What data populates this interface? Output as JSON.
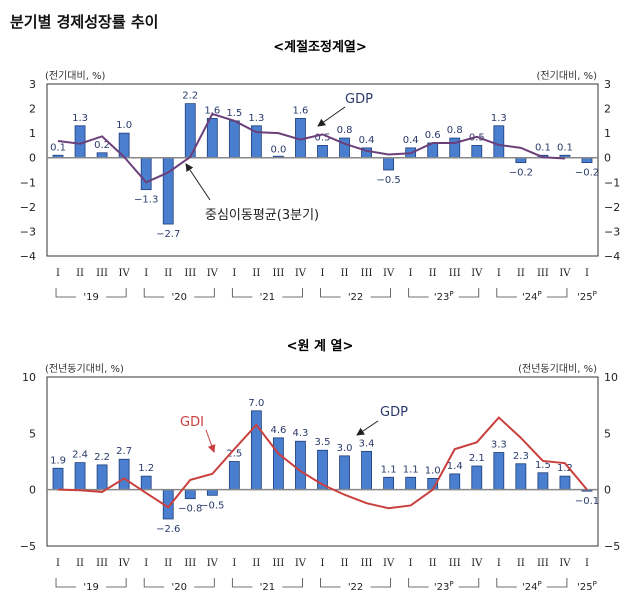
{
  "title": "분기별 경제성장률 추이",
  "chart_data": [
    {
      "type": "bar",
      "subtitle": "<계절조정계열>",
      "ylabel_left": "(전기대비, %)",
      "ylabel_right": "(전기대비, %)",
      "ylim": [
        -4,
        3
      ],
      "yticks": [
        3,
        2,
        1,
        0,
        -1,
        -2,
        -3,
        -4
      ],
      "categories": [
        "I",
        "II",
        "III",
        "IV",
        "I",
        "II",
        "III",
        "IV",
        "I",
        "II",
        "III",
        "IV",
        "I",
        "II",
        "III",
        "IV",
        "I",
        "II",
        "III",
        "IV",
        "I",
        "II",
        "III",
        "IV",
        "I"
      ],
      "years": [
        {
          "label": "'19",
          "sup": ""
        },
        {
          "label": "'20",
          "sup": ""
        },
        {
          "label": "'21",
          "sup": ""
        },
        {
          "label": "'22",
          "sup": ""
        },
        {
          "label": "'23",
          "sup": "P"
        },
        {
          "label": "'24",
          "sup": "P"
        },
        {
          "label": "'25",
          "sup": "P"
        }
      ],
      "series": [
        {
          "name": "GDP",
          "kind": "bar",
          "color": "#4a7fd0",
          "values": [
            0.1,
            1.3,
            0.2,
            1.0,
            -1.3,
            -2.7,
            2.2,
            1.6,
            1.5,
            1.3,
            0.0,
            1.6,
            0.5,
            0.8,
            0.4,
            -0.5,
            0.4,
            0.6,
            0.8,
            0.5,
            1.3,
            -0.2,
            0.1,
            0.1,
            -0.2
          ],
          "labels": [
            "0.1",
            "1.3",
            "0.2",
            "1.0",
            "−1.3",
            "−2.7",
            "2.2",
            "1.6",
            "1.5",
            "1.3",
            "0.0",
            "1.6",
            "0.5",
            "0.8",
            "0.4",
            "−0.5",
            "0.4",
            "0.6",
            "0.8",
            "0.5",
            "1.3",
            "−0.2",
            "0.1",
            "0.1",
            "−0.2"
          ]
        },
        {
          "name": "중심이동평균(3분기)",
          "kind": "line",
          "color": "#6b3f7a",
          "values": [
            0.68,
            0.57,
            0.87,
            0.03,
            -1.0,
            -0.6,
            0.03,
            1.78,
            1.5,
            1.04,
            1.0,
            0.74,
            0.95,
            0.57,
            0.28,
            0.13,
            0.18,
            0.6,
            0.6,
            0.85,
            0.52,
            0.4,
            0.02,
            -0.03,
            null
          ]
        }
      ],
      "annotations": [
        "GDP",
        "중심이동평균(3분기)"
      ]
    },
    {
      "type": "bar",
      "subtitle": "<원 계 열>",
      "ylabel_left": "(전년동기대비, %)",
      "ylabel_right": "(전년동기대비, %)",
      "ylim": [
        -5,
        10
      ],
      "yticks": [
        10,
        5,
        0,
        -5
      ],
      "categories": [
        "I",
        "II",
        "III",
        "IV",
        "I",
        "II",
        "III",
        "IV",
        "I",
        "II",
        "III",
        "IV",
        "I",
        "II",
        "III",
        "IV",
        "I",
        "II",
        "III",
        "IV",
        "I",
        "II",
        "III",
        "IV",
        "I"
      ],
      "years": [
        {
          "label": "'19",
          "sup": ""
        },
        {
          "label": "'20",
          "sup": ""
        },
        {
          "label": "'21",
          "sup": ""
        },
        {
          "label": "'22",
          "sup": ""
        },
        {
          "label": "'23",
          "sup": "P"
        },
        {
          "label": "'24",
          "sup": "P"
        },
        {
          "label": "'25",
          "sup": "P"
        }
      ],
      "series": [
        {
          "name": "GDP",
          "kind": "bar",
          "color": "#4a7fd0",
          "values": [
            1.9,
            2.4,
            2.2,
            2.7,
            1.2,
            -2.6,
            -0.8,
            -0.5,
            2.5,
            7.0,
            4.6,
            4.3,
            3.5,
            3.0,
            3.4,
            1.1,
            1.1,
            1.0,
            1.4,
            2.1,
            3.3,
            2.3,
            1.5,
            1.2,
            -0.1
          ],
          "labels": [
            "1.9",
            "2.4",
            "2.2",
            "2.7",
            "1.2",
            "−2.6",
            "−0.8",
            "−0.5",
            "2.5",
            "7.0",
            "4.6",
            "4.3",
            "3.5",
            "3.0",
            "3.4",
            "1.1",
            "1.1",
            "1.0",
            "1.4",
            "2.1",
            "3.3",
            "2.3",
            "1.5",
            "1.2",
            "−0.1"
          ]
        },
        {
          "name": "GDI",
          "kind": "line",
          "color": "#c9403f",
          "values": [
            0.0,
            -0.05,
            -0.2,
            1.0,
            -0.3,
            -1.56,
            0.87,
            1.4,
            3.6,
            5.75,
            3.2,
            1.65,
            0.45,
            -0.45,
            -1.2,
            -1.65,
            -1.4,
            0.0,
            3.6,
            4.2,
            6.4,
            4.6,
            2.55,
            2.35,
            0.0
          ]
        }
      ],
      "annotations": [
        "GDI",
        "GDP"
      ]
    }
  ]
}
